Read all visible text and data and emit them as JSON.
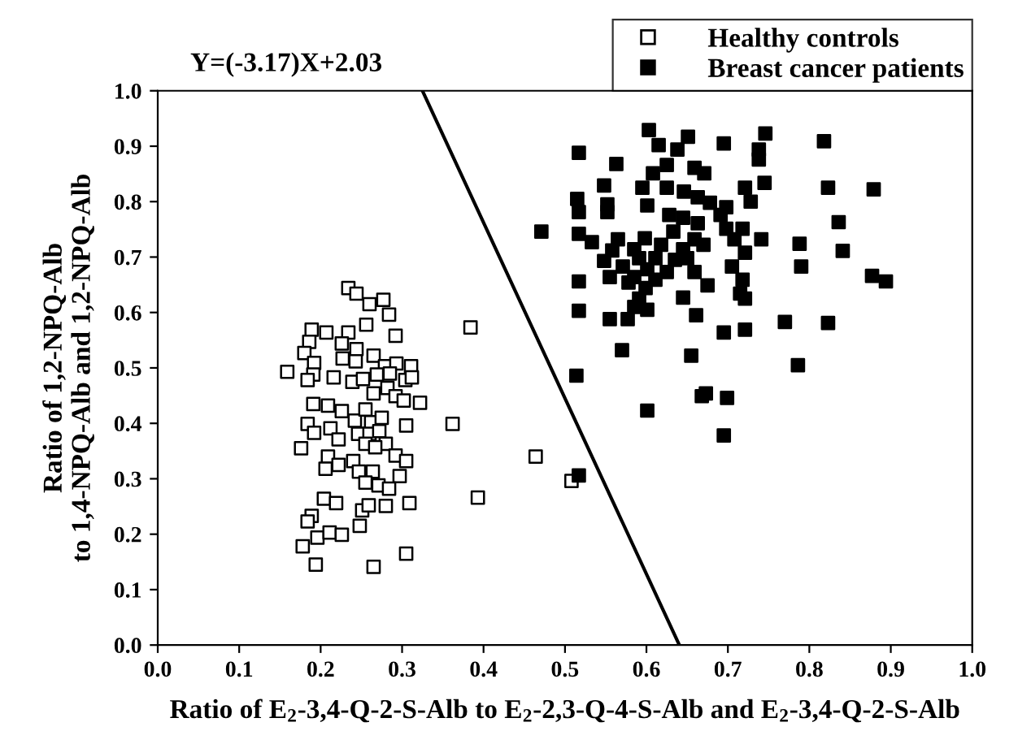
{
  "chart_data": {
    "type": "scatter",
    "xlabel": "Ratio of E$_{2}$-3,4-Q-2-S-Alb to E$_{2}$-2,3-Q-4-S-Alb and E$_{2}$-3,4-Q-2-S-Alb",
    "ylabel": "Ratio of 1,2-NPQ-Alb\nto 1,4-NPQ-Alb and 1,2-NPQ-Alb",
    "annotations": [
      "Y=(-3.17)X+2.03"
    ],
    "xlim": [
      0.0,
      1.0
    ],
    "ylim": [
      0.0,
      1.0
    ],
    "xticks": [
      {
        "value": 0,
        "label": "0.0"
      },
      0.1,
      0.2,
      0.3,
      0.4,
      0.5,
      0.6,
      0.7,
      0.8,
      0.9,
      {
        "value": 1,
        "label": "1.0"
      }
    ],
    "yticks": [
      {
        "value": 0,
        "label": "0.0"
      },
      0.1,
      0.2,
      0.3,
      0.4,
      0.5,
      0.6,
      0.7,
      0.8,
      0.9,
      {
        "value": 1,
        "label": "1.0"
      }
    ],
    "grid": false,
    "legend": "top right",
    "series": [
      {
        "name": "Healthy controls",
        "color": "#ffffff",
        "marker": "square",
        "x": [
          0.234,
          0.244,
          0.26,
          0.277,
          0.284,
          0.256,
          0.292,
          0.384,
          0.189,
          0.207,
          0.234,
          0.186,
          0.226,
          0.244,
          0.18,
          0.192,
          0.227,
          0.243,
          0.265,
          0.279,
          0.293,
          0.311,
          0.159,
          0.191,
          0.216,
          0.239,
          0.252,
          0.269,
          0.285,
          0.304,
          0.312,
          0.184,
          0.282,
          0.265,
          0.292,
          0.302,
          0.322,
          0.191,
          0.209,
          0.226,
          0.242,
          0.255,
          0.262,
          0.275,
          0.362,
          0.305,
          0.184,
          0.212,
          0.192,
          0.222,
          0.246,
          0.26,
          0.272,
          0.28,
          0.255,
          0.267,
          0.176,
          0.209,
          0.206,
          0.222,
          0.24,
          0.247,
          0.264,
          0.292,
          0.305,
          0.297,
          0.255,
          0.271,
          0.284,
          0.464,
          0.393,
          0.204,
          0.219,
          0.251,
          0.259,
          0.28,
          0.309,
          0.189,
          0.184,
          0.248,
          0.196,
          0.211,
          0.226,
          0.178,
          0.305,
          0.194,
          0.265,
          0.508
        ],
        "values": [
          0.644,
          0.634,
          0.615,
          0.623,
          0.596,
          0.578,
          0.558,
          0.573,
          0.569,
          0.564,
          0.564,
          0.547,
          0.544,
          0.534,
          0.527,
          0.509,
          0.517,
          0.512,
          0.522,
          0.503,
          0.508,
          0.503,
          0.493,
          0.488,
          0.483,
          0.475,
          0.48,
          0.488,
          0.49,
          0.478,
          0.483,
          0.478,
          0.464,
          0.454,
          0.449,
          0.441,
          0.437,
          0.435,
          0.432,
          0.422,
          0.405,
          0.425,
          0.402,
          0.41,
          0.399,
          0.396,
          0.399,
          0.391,
          0.383,
          0.371,
          0.381,
          0.381,
          0.386,
          0.363,
          0.363,
          0.357,
          0.355,
          0.34,
          0.318,
          0.325,
          0.332,
          0.313,
          0.313,
          0.342,
          0.332,
          0.305,
          0.293,
          0.288,
          0.282,
          0.34,
          0.266,
          0.264,
          0.256,
          0.243,
          0.252,
          0.251,
          0.256,
          0.233,
          0.223,
          0.215,
          0.194,
          0.203,
          0.199,
          0.178,
          0.165,
          0.145,
          0.141,
          0.296
        ]
      },
      {
        "name": "Breast cancer patients",
        "color": "#000000",
        "marker": "square",
        "x": [
          0.471,
          0.517,
          0.603,
          0.615,
          0.651,
          0.638,
          0.695,
          0.746,
          0.738,
          0.738,
          0.818,
          0.563,
          0.625,
          0.659,
          0.671,
          0.608,
          0.548,
          0.595,
          0.625,
          0.646,
          0.745,
          0.721,
          0.823,
          0.879,
          0.515,
          0.552,
          0.663,
          0.678,
          0.728,
          0.601,
          0.698,
          0.517,
          0.552,
          0.691,
          0.628,
          0.645,
          0.836,
          0.517,
          0.533,
          0.565,
          0.598,
          0.633,
          0.663,
          0.659,
          0.698,
          0.718,
          0.708,
          0.741,
          0.788,
          0.558,
          0.585,
          0.618,
          0.645,
          0.67,
          0.721,
          0.548,
          0.591,
          0.611,
          0.635,
          0.65,
          0.841,
          0.571,
          0.601,
          0.625,
          0.705,
          0.79,
          0.555,
          0.585,
          0.611,
          0.659,
          0.718,
          0.877,
          0.894,
          0.517,
          0.578,
          0.599,
          0.675,
          0.715,
          0.591,
          0.645,
          0.721,
          0.585,
          0.517,
          0.601,
          0.555,
          0.577,
          0.661,
          0.77,
          0.823,
          0.695,
          0.721,
          0.57,
          0.655,
          0.786,
          0.514,
          0.601,
          0.668,
          0.673,
          0.699,
          0.695,
          0.517
        ],
        "values": [
          0.746,
          0.888,
          0.929,
          0.902,
          0.917,
          0.894,
          0.905,
          0.923,
          0.894,
          0.876,
          0.909,
          0.868,
          0.866,
          0.861,
          0.851,
          0.851,
          0.829,
          0.825,
          0.825,
          0.818,
          0.834,
          0.825,
          0.825,
          0.822,
          0.805,
          0.795,
          0.808,
          0.798,
          0.8,
          0.793,
          0.79,
          0.781,
          0.781,
          0.776,
          0.776,
          0.771,
          0.763,
          0.742,
          0.727,
          0.732,
          0.734,
          0.746,
          0.761,
          0.732,
          0.751,
          0.751,
          0.732,
          0.732,
          0.724,
          0.712,
          0.714,
          0.722,
          0.714,
          0.722,
          0.708,
          0.693,
          0.698,
          0.698,
          0.695,
          0.698,
          0.711,
          0.683,
          0.678,
          0.673,
          0.683,
          0.683,
          0.664,
          0.664,
          0.659,
          0.673,
          0.659,
          0.666,
          0.656,
          0.656,
          0.654,
          0.644,
          0.649,
          0.634,
          0.625,
          0.627,
          0.625,
          0.61,
          0.603,
          0.605,
          0.588,
          0.588,
          0.595,
          0.583,
          0.581,
          0.564,
          0.569,
          0.532,
          0.522,
          0.505,
          0.486,
          0.423,
          0.449,
          0.454,
          0.446,
          0.378,
          0.306
        ]
      },
      {
        "type": "line",
        "marker": "none",
        "color": "#000000",
        "x": [
          0.325,
          0.6404
        ],
        "values": [
          1.0,
          0.0
        ]
      }
    ]
  }
}
